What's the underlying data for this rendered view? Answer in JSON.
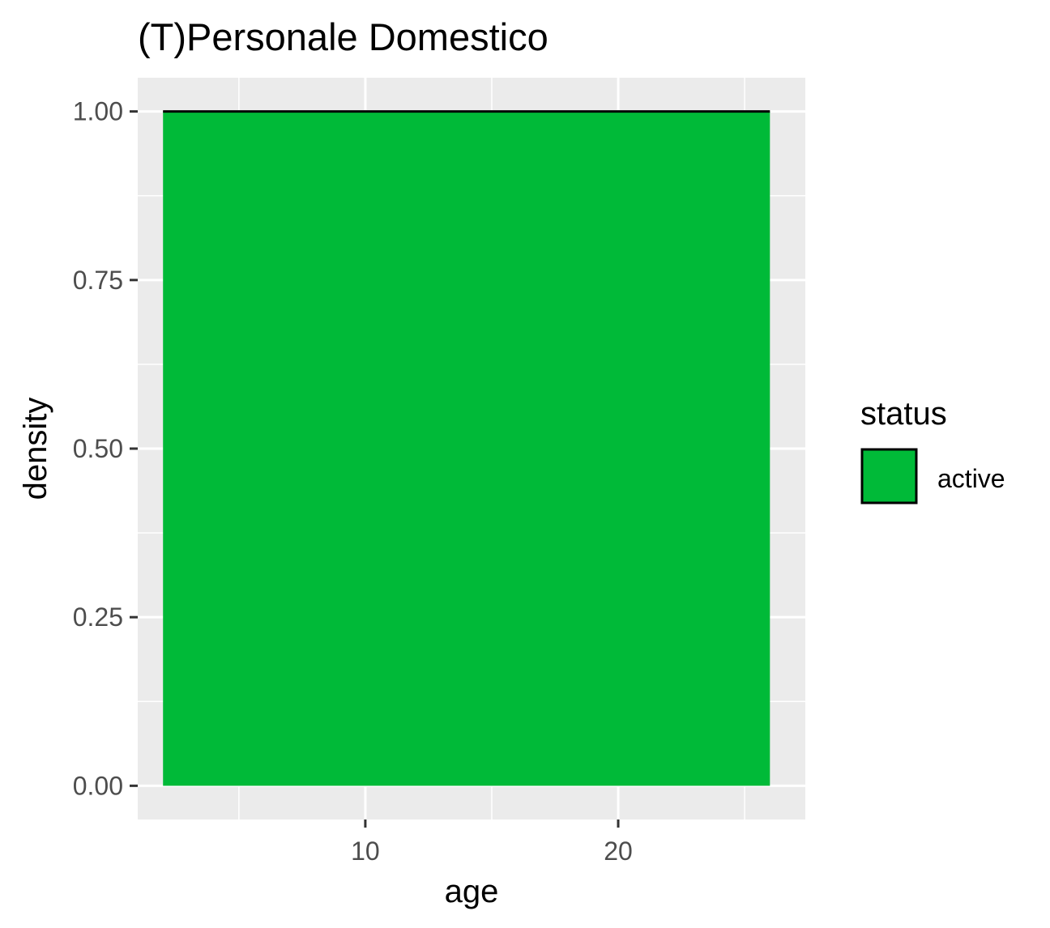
{
  "chart_data": {
    "type": "area",
    "title": "(T)Personale Domestico",
    "xlabel": "age",
    "ylabel": "density",
    "xlim": [
      1.0,
      27.4
    ],
    "ylim": [
      -0.05,
      1.05
    ],
    "x_ticks": [
      10,
      20
    ],
    "x_tick_labels": [
      "10",
      "20"
    ],
    "x_minor_ticks": [
      5,
      15,
      25
    ],
    "y_ticks": [
      0,
      0.25,
      0.5,
      0.75,
      1.0
    ],
    "y_tick_labels": [
      "0.00",
      "0.25",
      "0.50",
      "0.75",
      "1.00"
    ],
    "y_minor_ticks": [
      0.125,
      0.375,
      0.625,
      0.875
    ],
    "grid": true,
    "legend": {
      "title": "status",
      "position": "right"
    },
    "series": [
      {
        "name": "active",
        "color": "#00BA38",
        "x": [
          2,
          26
        ],
        "values": [
          1.0,
          1.0
        ]
      }
    ]
  }
}
